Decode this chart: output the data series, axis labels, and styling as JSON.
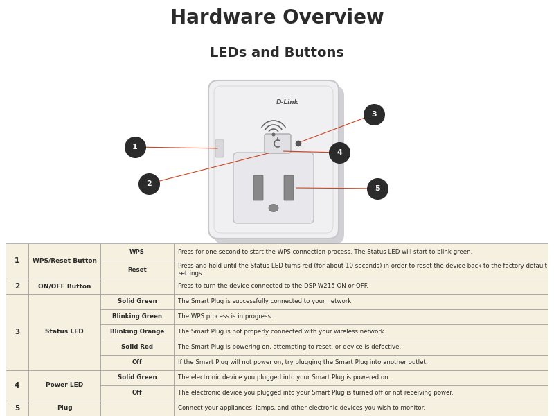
{
  "title": "Hardware Overview",
  "subtitle": "LEDs and Buttons",
  "title_fontsize": 20,
  "subtitle_fontsize": 14,
  "title_color": "#2b2b2b",
  "bg_color": "#ffffff",
  "table_row_bg": "#f5f0e0",
  "table_border_color": "#999999",
  "line_color": "#cc4422",
  "callout_bg": "#2b2b2b",
  "table_data": [
    {
      "num": "1",
      "name": "WPS/Reset Button",
      "sub_rows": [
        {
          "col3": "WPS",
          "col4": "Press for one second to start the WPS connection process. The Status LED will start to blink green."
        },
        {
          "col3": "Reset",
          "col4": "Press and hold until the Status LED turns red (for about 10 seconds) in order to reset the device back to the factory default settings."
        }
      ]
    },
    {
      "num": "2",
      "name": "ON/OFF Button",
      "sub_rows": [
        {
          "col3": "",
          "col4": "Press to turn the device connected to the DSP-W215 ON or OFF."
        }
      ]
    },
    {
      "num": "3",
      "name": "Status LED",
      "sub_rows": [
        {
          "col3": "Solid Green",
          "col4": "The Smart Plug is successfully connected to your network."
        },
        {
          "col3": "Blinking Green",
          "col4": "The WPS process is in progress."
        },
        {
          "col3": "Blinking Orange",
          "col4": "The Smart Plug is not properly connected with your wireless network."
        },
        {
          "col3": "Solid Red",
          "col4": "The Smart Plug is powering on, attempting to reset, or device is defective."
        },
        {
          "col3": "Off",
          "col4": "If the Smart Plug will not power on, try plugging the Smart Plug into another outlet."
        }
      ]
    },
    {
      "num": "4",
      "name": "Power LED",
      "sub_rows": [
        {
          "col3": "Solid Green",
          "col4": "The electronic device you plugged into your Smart Plug is powered on."
        },
        {
          "col3": "Off",
          "col4": "The electronic device you plugged into your Smart Plug is turned off or not receiving power."
        }
      ]
    },
    {
      "num": "5",
      "name": "Plug",
      "sub_rows": [
        {
          "col3": "",
          "col4": "Connect your appliances, lamps, and other electronic devices you wish to monitor."
        }
      ]
    }
  ]
}
